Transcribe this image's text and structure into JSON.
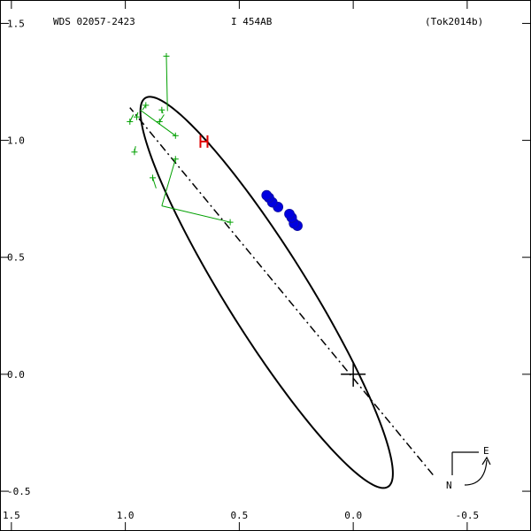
{
  "header": {
    "wds_id": "WDS 02057-2423",
    "discoverer": "I   454AB",
    "reference": "(Tok2014b)"
  },
  "orientation": {
    "east_label": "E",
    "north_label": "N"
  },
  "colors": {
    "ellipse": "#000000",
    "line_of_nodes": "#000000",
    "micrometric": "#00a000",
    "interferometric": "#0000e0",
    "flagged": "#e00000",
    "primary": "#000000"
  },
  "chart_data": {
    "type": "scatter",
    "title": "",
    "xlabel": "",
    "ylabel": "",
    "x_reversed": true,
    "xlim": [
      -0.78,
      1.55
    ],
    "ylim": [
      -0.67,
      1.6
    ],
    "xticks": [
      {
        "value": -0.5,
        "label": "-0.5"
      },
      {
        "value": 0.0,
        "label": "0.0"
      },
      {
        "value": 0.5,
        "label": "0.5"
      },
      {
        "value": 1.0,
        "label": "1.0"
      },
      {
        "value": 1.5,
        "label": "1.5"
      }
    ],
    "yticks": [
      {
        "value": 1.5,
        "label": "1.5"
      },
      {
        "value": 1.0,
        "label": "1.0"
      },
      {
        "value": 0.5,
        "label": "0.5"
      },
      {
        "value": 0.0,
        "label": "0.0"
      },
      {
        "value": -0.5,
        "label": "-0.5"
      }
    ],
    "primary": {
      "x": 0.0,
      "y": 0.0
    },
    "ellipse": {
      "cx": 0.38,
      "cy": 0.35,
      "a": 0.987,
      "b": 0.178,
      "angle_deg": 57.3
    },
    "line_of_nodes": [
      [
        -0.35,
        -0.43
      ],
      [
        0.98,
        1.14
      ]
    ],
    "micrometric": [
      {
        "x": 0.82,
        "y": 1.36,
        "ox": 0.815,
        "oy": 1.125
      },
      {
        "x": 0.84,
        "y": 1.13,
        "ox": 0.835,
        "oy": 1.115
      },
      {
        "x": 0.85,
        "y": 1.08,
        "ox": 0.83,
        "oy": 1.11
      },
      {
        "x": 0.78,
        "y": 1.02,
        "ox": 0.935,
        "oy": 1.13
      },
      {
        "x": 0.91,
        "y": 1.15,
        "ox": 0.925,
        "oy": 1.13
      },
      {
        "x": 0.95,
        "y": 1.1,
        "ox": 0.945,
        "oy": 1.12
      },
      {
        "x": 0.98,
        "y": 1.08,
        "ox": 0.965,
        "oy": 1.11
      },
      {
        "x": 0.96,
        "y": 0.95,
        "ox": 0.955,
        "oy": 0.975
      },
      {
        "x": 0.88,
        "y": 0.84,
        "ox": 0.865,
        "oy": 0.795
      },
      {
        "x": 0.78,
        "y": 0.92,
        "ox": 0.84,
        "oy": 0.72
      },
      {
        "x": 0.54,
        "y": 0.65,
        "ox": 0.84,
        "oy": 0.72
      }
    ],
    "interferometric": [
      {
        "x": 0.245,
        "y": 0.635
      },
      {
        "x": 0.26,
        "y": 0.645
      },
      {
        "x": 0.27,
        "y": 0.67
      },
      {
        "x": 0.28,
        "y": 0.685
      },
      {
        "x": 0.33,
        "y": 0.715
      },
      {
        "x": 0.355,
        "y": 0.735
      },
      {
        "x": 0.37,
        "y": 0.755
      },
      {
        "x": 0.38,
        "y": 0.765
      }
    ],
    "flagged": [
      {
        "x": 0.655,
        "y": 0.995
      }
    ]
  }
}
